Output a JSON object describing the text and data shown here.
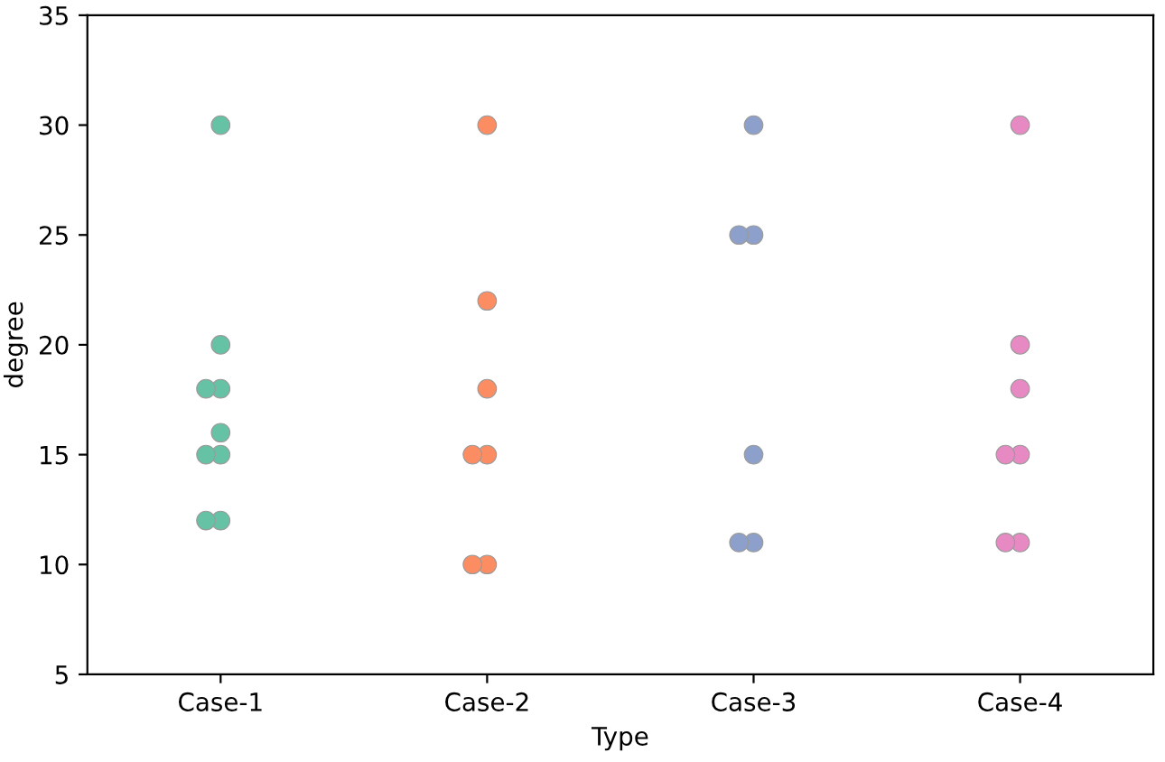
{
  "chart_data": {
    "type": "scatter",
    "xlabel": "Type",
    "ylabel": "degree",
    "categories": [
      "Case-1",
      "Case-2",
      "Case-3",
      "Case-4"
    ],
    "ylim": [
      5,
      35
    ],
    "yticks": [
      5,
      10,
      15,
      20,
      25,
      30,
      35
    ],
    "grid": false,
    "marker": "circle",
    "series": [
      {
        "color": "#66c2a5",
        "x": [
          "Case-1",
          "Case-1",
          "Case-1",
          "Case-1",
          "Case-1",
          "Case-1",
          "Case-1",
          "Case-1",
          "Case-1"
        ],
        "values": [
          30,
          20,
          18,
          18,
          16,
          15,
          15,
          12,
          12
        ]
      },
      {
        "color": "#fc8d62",
        "x": [
          "Case-2",
          "Case-2",
          "Case-2",
          "Case-2",
          "Case-2",
          "Case-2",
          "Case-2"
        ],
        "values": [
          30,
          22,
          18,
          15,
          15,
          10,
          10
        ]
      },
      {
        "color": "#8da0cb",
        "x": [
          "Case-3",
          "Case-3",
          "Case-3",
          "Case-3",
          "Case-3",
          "Case-3"
        ],
        "values": [
          30,
          25,
          25,
          15,
          11,
          11
        ]
      },
      {
        "color": "#e78ac3",
        "x": [
          "Case-4",
          "Case-4",
          "Case-4",
          "Case-4",
          "Case-4",
          "Case-4",
          "Case-4"
        ],
        "values": [
          30,
          20,
          18,
          15,
          15,
          11,
          11
        ]
      }
    ]
  }
}
